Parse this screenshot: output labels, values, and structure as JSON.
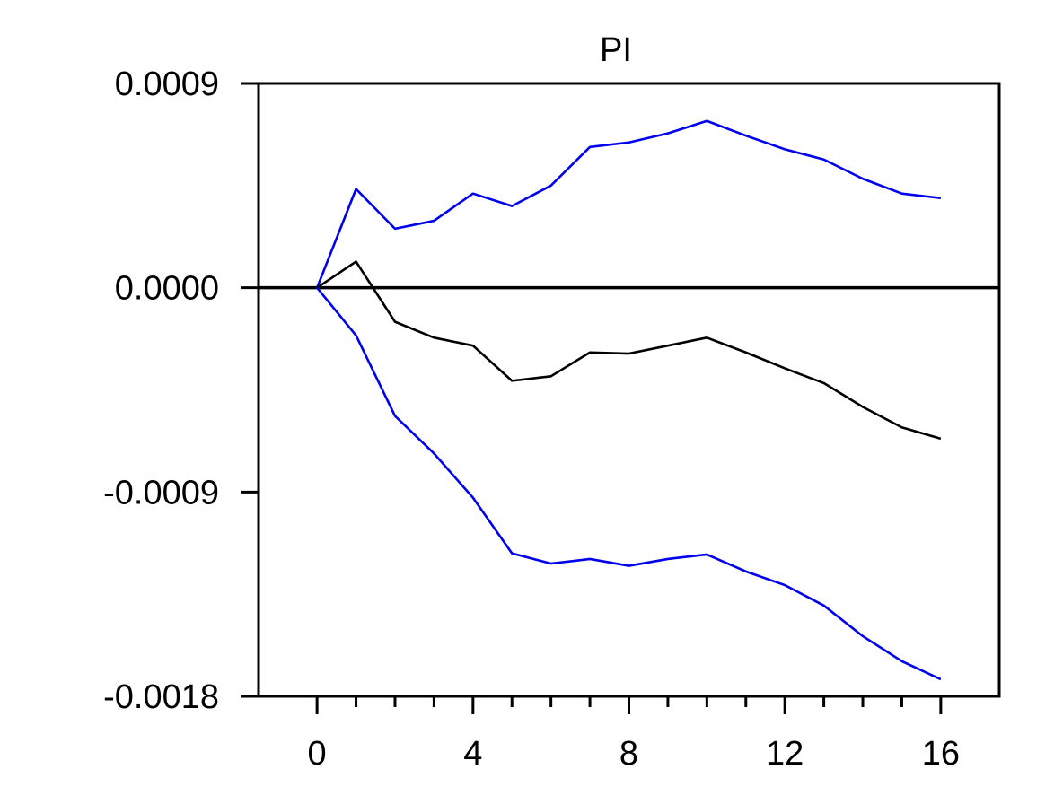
{
  "chart_data": {
    "type": "line",
    "title": "PI",
    "xlabel": "",
    "ylabel": "",
    "xlim": [
      -1.5,
      17.5
    ],
    "ylim": [
      -0.0018,
      0.0009
    ],
    "x_ticks": [
      0,
      4,
      8,
      12,
      16
    ],
    "x_tick_labels": [
      "0",
      "4",
      "8",
      "12",
      "16"
    ],
    "x_minor_ticks": [
      0,
      1,
      2,
      3,
      4,
      5,
      6,
      7,
      8,
      9,
      10,
      11,
      12,
      13,
      14,
      15,
      16
    ],
    "y_ticks": [
      0.0009,
      0.0,
      -0.0009,
      -0.0018
    ],
    "y_tick_labels": [
      "0.0009",
      "0.0000",
      "-0.0009",
      "-0.0018"
    ],
    "zero_line": true,
    "grid": false,
    "x": [
      0,
      1,
      2,
      3,
      4,
      5,
      6,
      7,
      8,
      9,
      10,
      11,
      12,
      13,
      14,
      15,
      16
    ],
    "series": [
      {
        "role": "upper",
        "color": "#0000ee",
        "values": [
          0.0,
          0.000435,
          0.00026,
          0.000295,
          0.000415,
          0.00036,
          0.00045,
          0.00062,
          0.00064,
          0.00068,
          0.000735,
          0.00067,
          0.00061,
          0.000565,
          0.00048,
          0.000415,
          0.000395
        ]
      },
      {
        "role": "point",
        "color": "#000000",
        "values": [
          0.0,
          0.000115,
          -0.00015,
          -0.00022,
          -0.000255,
          -0.00041,
          -0.00039,
          -0.000285,
          -0.00029,
          -0.000255,
          -0.00022,
          -0.000285,
          -0.000355,
          -0.00042,
          -0.000525,
          -0.000615,
          -0.000665
        ]
      },
      {
        "role": "lower",
        "color": "#0000ee",
        "values": [
          0.0,
          -0.00021,
          -0.000565,
          -0.00073,
          -0.000925,
          -0.00117,
          -0.001215,
          -0.001195,
          -0.001225,
          -0.001195,
          -0.001175,
          -0.00125,
          -0.00131,
          -0.0014,
          -0.001535,
          -0.001645,
          -0.001725
        ]
      }
    ]
  }
}
